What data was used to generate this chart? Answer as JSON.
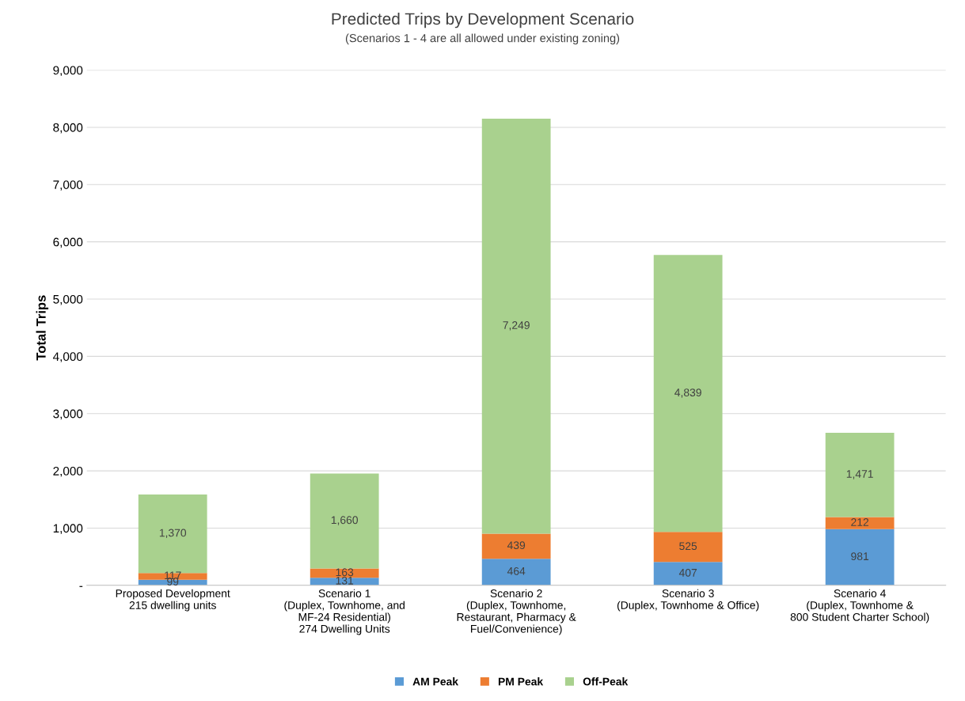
{
  "chart_data": {
    "type": "bar",
    "stacked": true,
    "title": "Predicted Trips by Development Scenario",
    "subtitle": "(Scenarios 1 - 4 are all allowed under existing zoning)",
    "ylabel": "Total Trips",
    "categories": [
      "Proposed Development\n215 dwelling units",
      "Scenario 1\n(Duplex, Townhome, and\nMF-24 Residential)\n274 Dwelling Units",
      "Scenario 2\n(Duplex, Townhome,\nRestaurant, Pharmacy &\nFuel/Convenience)",
      "Scenario 3\n(Duplex, Townhome & Office)",
      "Scenario 4\n(Duplex, Townhome &\n800 Student Charter School)"
    ],
    "series": [
      {
        "name": "AM Peak",
        "color": "#5b9bd5",
        "values": [
          99,
          131,
          464,
          407,
          981
        ],
        "value_labels": [
          "99",
          "131",
          "464",
          "407",
          "981"
        ]
      },
      {
        "name": "PM Peak",
        "color": "#ed7d31",
        "values": [
          117,
          163,
          439,
          525,
          212
        ],
        "value_labels": [
          "117",
          "163",
          "439",
          "525",
          "212"
        ]
      },
      {
        "name": "Off-Peak",
        "color": "#a9d18e",
        "values": [
          1370,
          1660,
          7249,
          4839,
          1471
        ],
        "value_labels": [
          "1,370",
          "1,660",
          "7,249",
          "4,839",
          "1,471"
        ]
      }
    ],
    "ylim": [
      0,
      9000
    ],
    "yticks": [
      {
        "value": 0,
        "label": "-"
      },
      {
        "value": 1000,
        "label": "1,000"
      },
      {
        "value": 2000,
        "label": "2,000"
      },
      {
        "value": 3000,
        "label": "3,000"
      },
      {
        "value": 4000,
        "label": "4,000"
      },
      {
        "value": 5000,
        "label": "5,000"
      },
      {
        "value": 6000,
        "label": "6,000"
      },
      {
        "value": 7000,
        "label": "7,000"
      },
      {
        "value": 8000,
        "label": "8,000"
      },
      {
        "value": 9000,
        "label": "9,000"
      }
    ],
    "grid": "y",
    "legend": "bottom"
  }
}
